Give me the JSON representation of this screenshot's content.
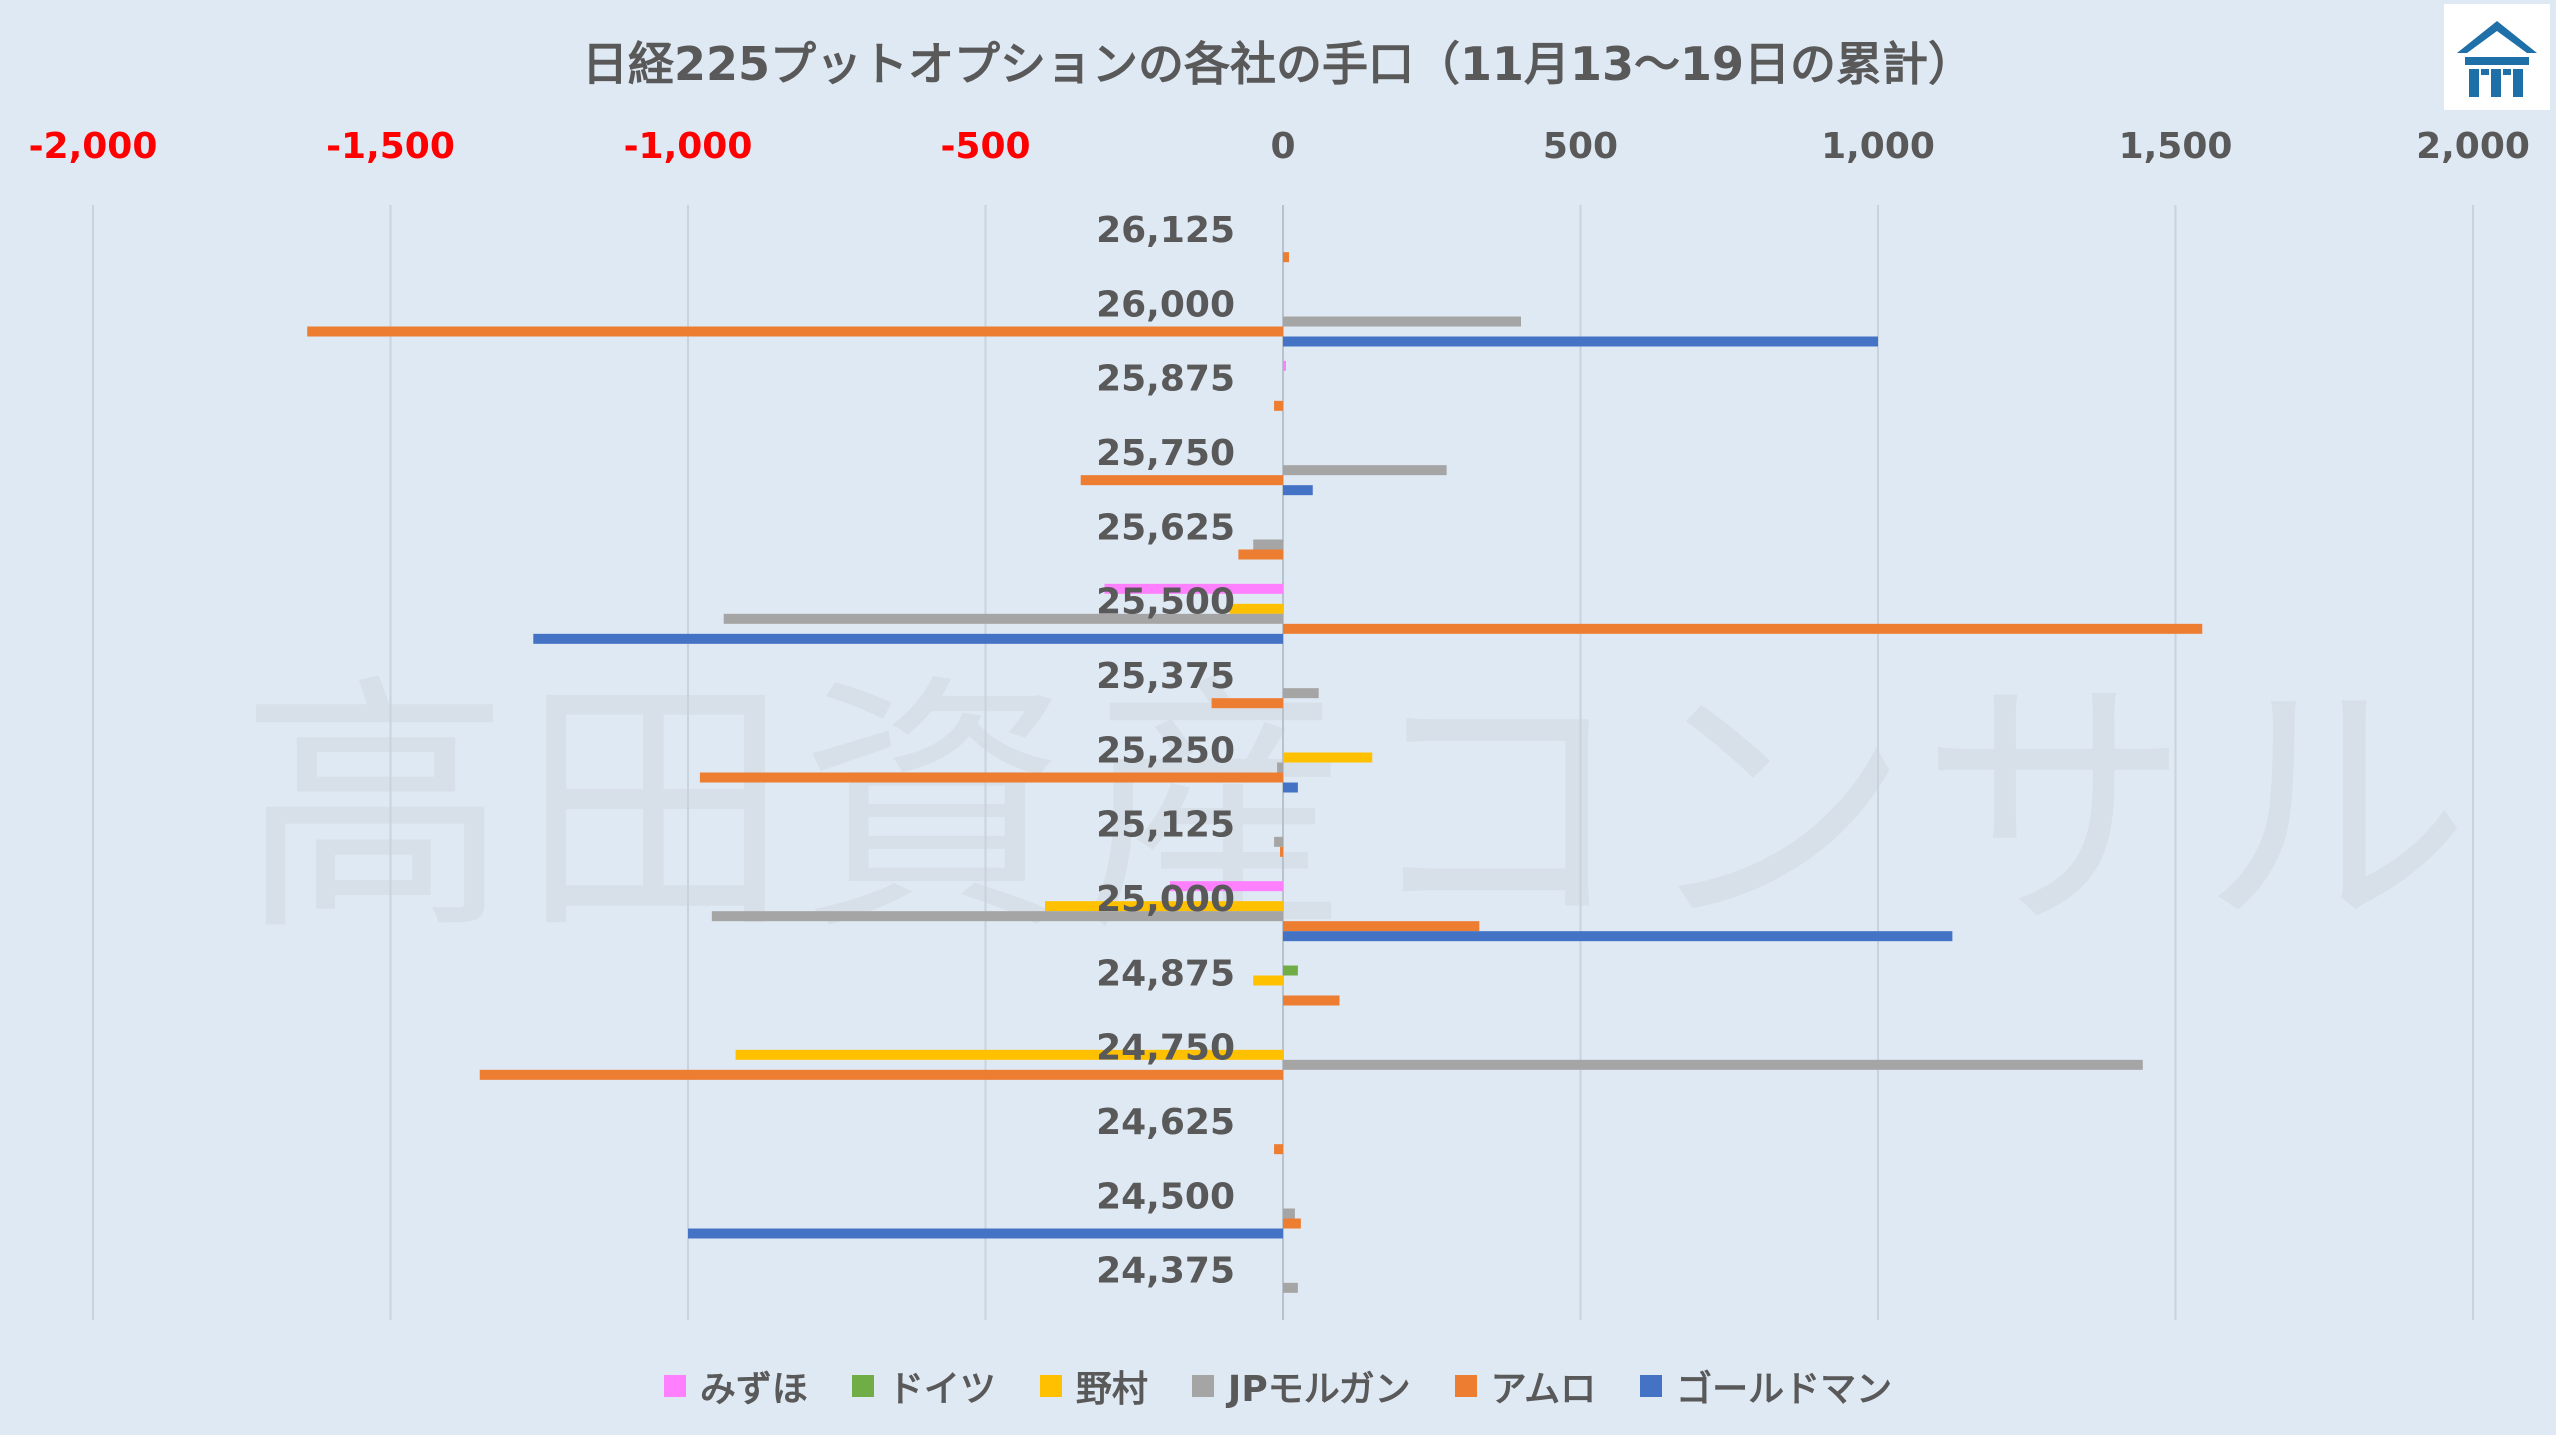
{
  "title": "日経225プットオプションの各社の手口（11月13～19日の累計）",
  "watermark": "高田資産コンサル",
  "logo": "logo-icon",
  "colors": {
    "background": "#dfe9f4",
    "negative_tick": "#ff0000",
    "positive_tick": "#595959",
    "category_label": "#595959",
    "grid": "#c9d3de"
  },
  "chart_data": {
    "type": "bar",
    "orientation": "horizontal",
    "xlim": [
      -2000,
      2000
    ],
    "x_ticks": [
      "-2,000",
      "-1,500",
      "-1,000",
      "-500",
      "0",
      "500",
      "1,000",
      "1,500",
      "2,000"
    ],
    "x_tick_values": [
      -2000,
      -1500,
      -1000,
      -500,
      0,
      500,
      1000,
      1500,
      2000
    ],
    "grid": true,
    "legend_position": "bottom",
    "categories": [
      "26,125",
      "26,000",
      "25,875",
      "25,750",
      "25,625",
      "25,500",
      "25,375",
      "25,250",
      "25,125",
      "25,000",
      "24,875",
      "24,750",
      "24,625",
      "24,500",
      "24,375"
    ],
    "series": [
      {
        "name": "みずほ",
        "color": "#ff80ff",
        "values": [
          0,
          0,
          5,
          0,
          0,
          -300,
          0,
          0,
          0,
          -190,
          0,
          0,
          0,
          0,
          0
        ]
      },
      {
        "name": "ドイツ",
        "color": "#70ad47",
        "values": [
          0,
          0,
          0,
          0,
          0,
          0,
          0,
          0,
          0,
          0,
          25,
          0,
          0,
          0,
          0
        ]
      },
      {
        "name": "野村",
        "color": "#ffc000",
        "values": [
          0,
          0,
          0,
          0,
          0,
          -90,
          0,
          150,
          0,
          -400,
          -50,
          -920,
          0,
          0,
          0
        ]
      },
      {
        "name": "JPモルガン",
        "color": "#a5a5a5",
        "values": [
          0,
          400,
          0,
          275,
          -50,
          -940,
          60,
          -10,
          -15,
          -960,
          0,
          1445,
          0,
          20,
          25
        ]
      },
      {
        "name": "アムロ",
        "color": "#ed7d31",
        "values": [
          10,
          -1640,
          -15,
          -340,
          -75,
          1545,
          -120,
          -980,
          -5,
          330,
          95,
          -1350,
          -15,
          30,
          0
        ]
      },
      {
        "name": "ゴールドマン",
        "color": "#4472c4",
        "values": [
          0,
          1000,
          0,
          50,
          0,
          -1260,
          0,
          25,
          0,
          1125,
          0,
          0,
          0,
          -1000,
          0
        ]
      }
    ]
  }
}
